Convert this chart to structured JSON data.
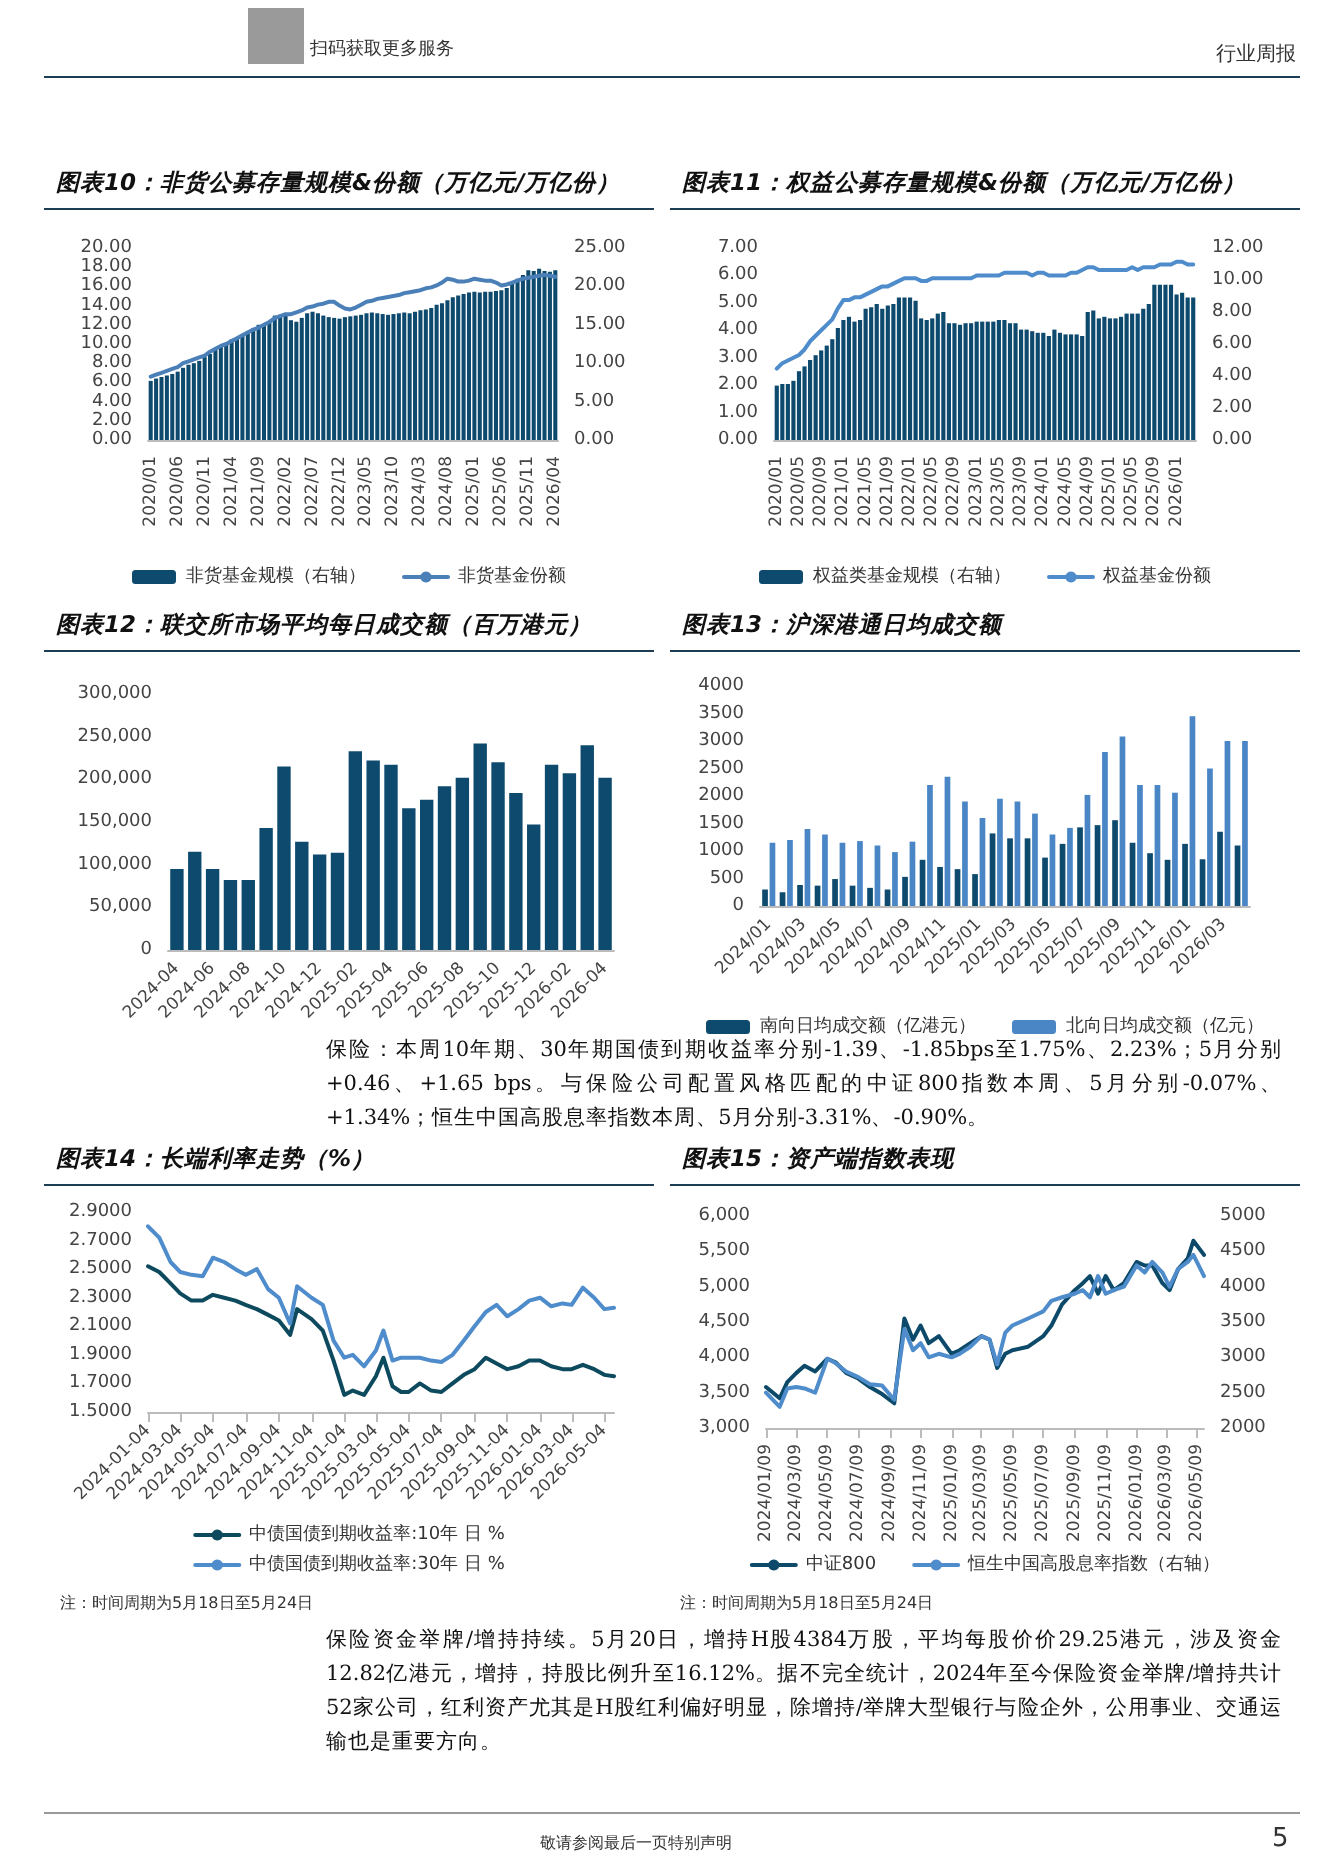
{
  "chart_data": [
    {
      "type": "bar",
      "title": "图表10：非货公募存量规模&份额（万亿元/万亿份）",
      "legend": "bottom",
      "marker": "none",
      "annotations": [
        "扫码获取更多服务",
        "行业周报",
        "敬请参阅最后一页特别声明",
        "5"
      ],
      "categories": [
        "2020/01",
        null,
        null,
        null,
        null,
        "2020/06",
        null,
        null,
        null,
        null,
        "2020/11",
        null,
        null,
        null,
        null,
        "2021/04",
        null,
        null,
        null,
        null,
        "2021/09",
        null,
        null,
        null,
        null,
        "2022/02",
        null,
        null,
        null,
        null,
        "2022/07",
        null,
        null,
        null,
        null,
        "2022/12",
        null,
        null,
        null,
        null,
        "2023/05",
        null,
        null,
        null,
        null,
        "2023/10",
        null,
        null,
        null,
        null,
        "2024/03",
        null,
        null,
        null,
        null,
        "2024/08",
        null,
        null,
        null,
        null,
        "2025/01",
        null,
        null,
        null,
        null,
        "2025/06",
        null,
        null,
        null,
        null,
        "2025/11",
        null,
        null,
        null,
        null,
        "2026/04"
      ],
      "ylim": [
        0,
        20
      ],
      "yticks": [
        {
          "value": 0,
          "label": "0.00"
        },
        {
          "value": 2,
          "label": "2.00"
        },
        {
          "value": 4,
          "label": "4.00"
        },
        {
          "value": 6,
          "label": "6.00"
        },
        {
          "value": 8,
          "label": "8.00"
        },
        {
          "value": 10,
          "label": "10.00"
        },
        {
          "value": 12,
          "label": "12.00"
        },
        {
          "value": 14,
          "label": "14.00"
        },
        {
          "value": 16,
          "label": "16.00"
        },
        {
          "value": 18,
          "label": "18.00"
        },
        {
          "value": 20,
          "label": "20.00"
        }
      ],
      "y2lim": [
        0,
        25
      ],
      "y2ticks": [
        {
          "value": 0,
          "label": "0.00"
        },
        {
          "value": 5,
          "label": "5.00"
        },
        {
          "value": 10,
          "label": "10.00"
        },
        {
          "value": 15,
          "label": "15.00"
        },
        {
          "value": 20,
          "label": "20.00"
        },
        {
          "value": 25,
          "label": "25.00"
        }
      ],
      "series": [
        {
          "name": "非货基金规模（右轴）",
          "type": "bar",
          "axis": "y2",
          "color": "#0e4a6e",
          "values": [
            7.7,
            8.0,
            8.2,
            8.4,
            8.6,
            8.9,
            9.4,
            9.8,
            10.0,
            10.3,
            10.8,
            11.2,
            11.8,
            12.2,
            12.5,
            13.1,
            13.3,
            13.8,
            14.2,
            14.5,
            15.0,
            15.0,
            15.4,
            16.2,
            16.3,
            16.2,
            15.6,
            15.4,
            15.9,
            16.5,
            16.7,
            16.5,
            16.2,
            16.0,
            15.9,
            15.8,
            16.0,
            16.1,
            16.2,
            16.3,
            16.5,
            16.6,
            16.5,
            16.4,
            16.3,
            16.4,
            16.5,
            16.6,
            16.5,
            16.7,
            16.9,
            17.0,
            17.2,
            17.6,
            17.8,
            18.2,
            18.6,
            18.8,
            19.0,
            19.2,
            19.3,
            19.2,
            19.3,
            19.3,
            19.4,
            19.5,
            19.8,
            20.3,
            21.0,
            21.5,
            22.1,
            22.0,
            22.3,
            22.0,
            21.9,
            22.1
          ]
        },
        {
          "name": "非货基金份额",
          "type": "line",
          "color": "#4a7fb8",
          "values": [
            6.6,
            6.8,
            7.0,
            7.2,
            7.4,
            7.6,
            8.0,
            8.2,
            8.4,
            8.6,
            8.8,
            9.2,
            9.5,
            9.8,
            10.0,
            10.3,
            10.6,
            10.9,
            11.2,
            11.5,
            11.7,
            12.0,
            12.3,
            12.7,
            12.9,
            13.1,
            13.1,
            13.3,
            13.5,
            13.8,
            13.9,
            14.1,
            14.2,
            14.4,
            14.4,
            14.0,
            13.7,
            13.6,
            13.8,
            14.1,
            14.4,
            14.5,
            14.7,
            14.8,
            14.9,
            15.0,
            15.1,
            15.3,
            15.4,
            15.5,
            15.6,
            15.8,
            15.9,
            16.1,
            16.4,
            16.8,
            16.7,
            16.5,
            16.5,
            16.6,
            16.8,
            16.7,
            16.6,
            16.6,
            16.4,
            16.1,
            16.2,
            16.4,
            16.6,
            16.8,
            16.9,
            17.0,
            17.1,
            17.2,
            17.1,
            17.0
          ]
        }
      ]
    },
    {
      "type": "bar",
      "title": "图表11：权益公募存量规模&份额（万亿元/万亿份）",
      "legend": "bottom",
      "marker": "none",
      "categories": [
        "2020/01",
        null,
        null,
        null,
        "2020/05",
        null,
        null,
        null,
        "2020/09",
        null,
        null,
        null,
        "2021/01",
        null,
        null,
        null,
        "2021/05",
        null,
        null,
        null,
        "2021/09",
        null,
        null,
        null,
        "2022/01",
        null,
        null,
        null,
        "2022/05",
        null,
        null,
        null,
        "2022/09",
        null,
        null,
        null,
        "2023/01",
        null,
        null,
        null,
        "2023/05",
        null,
        null,
        null,
        "2023/09",
        null,
        null,
        null,
        "2024/01",
        null,
        null,
        null,
        "2024/05",
        null,
        null,
        null,
        "2024/09",
        null,
        null,
        null,
        "2025/01",
        null,
        null,
        null,
        "2025/05",
        null,
        null,
        null,
        "2025/09",
        null,
        null,
        null,
        "2026/01",
        null,
        null,
        null
      ],
      "ylim": [
        0,
        7
      ],
      "yticks": [
        {
          "value": 0,
          "label": "0.00"
        },
        {
          "value": 1,
          "label": "1.00"
        },
        {
          "value": 2,
          "label": "2.00"
        },
        {
          "value": 3,
          "label": "3.00"
        },
        {
          "value": 4,
          "label": "4.00"
        },
        {
          "value": 5,
          "label": "5.00"
        },
        {
          "value": 6,
          "label": "6.00"
        },
        {
          "value": 7,
          "label": "7.00"
        }
      ],
      "y2lim": [
        0,
        12
      ],
      "y2ticks": [
        {
          "value": 0,
          "label": "0.00"
        },
        {
          "value": 2,
          "label": "2.00"
        },
        {
          "value": 4,
          "label": "4.00"
        },
        {
          "value": 6,
          "label": "6.00"
        },
        {
          "value": 8,
          "label": "8.00"
        },
        {
          "value": 10,
          "label": "10.00"
        },
        {
          "value": 12,
          "label": "12.00"
        }
      ],
      "series": [
        {
          "name": "权益类基金规模（右轴）",
          "type": "bar",
          "axis": "y2",
          "color": "#0e4a6e",
          "values": [
            3.4,
            3.5,
            3.5,
            3.7,
            4.3,
            4.6,
            5.0,
            5.3,
            5.6,
            5.9,
            6.3,
            7.0,
            7.5,
            7.7,
            7.4,
            7.5,
            8.2,
            8.3,
            8.5,
            8.2,
            8.4,
            8.5,
            8.9,
            8.9,
            8.9,
            8.7,
            7.6,
            7.5,
            7.6,
            7.9,
            8.0,
            7.3,
            7.3,
            7.2,
            7.3,
            7.3,
            7.4,
            7.4,
            7.4,
            7.4,
            7.5,
            7.5,
            7.3,
            7.3,
            6.9,
            6.9,
            6.8,
            6.7,
            6.7,
            6.5,
            6.9,
            6.7,
            6.6,
            6.6,
            6.6,
            6.5,
            8.0,
            8.1,
            7.6,
            7.7,
            7.6,
            7.6,
            7.7,
            7.9,
            7.9,
            7.9,
            8.2,
            8.5,
            9.7,
            9.7,
            9.7,
            9.7,
            9.1,
            9.2,
            8.9,
            8.9
          ]
        },
        {
          "name": "权益基金份额",
          "type": "line",
          "color": "#4f8ccb",
          "values": [
            2.6,
            2.8,
            2.9,
            3.0,
            3.1,
            3.3,
            3.6,
            3.8,
            4.0,
            4.2,
            4.4,
            4.8,
            5.1,
            5.1,
            5.2,
            5.2,
            5.3,
            5.4,
            5.5,
            5.6,
            5.6,
            5.7,
            5.8,
            5.9,
            5.9,
            5.9,
            5.8,
            5.8,
            5.9,
            5.9,
            5.9,
            5.9,
            5.9,
            5.9,
            5.9,
            5.9,
            6.0,
            6.0,
            6.0,
            6.0,
            6.0,
            6.1,
            6.1,
            6.1,
            6.1,
            6.1,
            6.0,
            6.1,
            6.1,
            6.0,
            6.0,
            6.0,
            6.0,
            6.1,
            6.1,
            6.2,
            6.3,
            6.3,
            6.2,
            6.2,
            6.2,
            6.2,
            6.2,
            6.2,
            6.3,
            6.2,
            6.3,
            6.3,
            6.3,
            6.4,
            6.4,
            6.4,
            6.5,
            6.5,
            6.4,
            6.4
          ]
        }
      ]
    },
    {
      "type": "bar",
      "title": "图表12：联交所市场平均每日成交额（百万港元）",
      "annotations": [
        "保险：本周10年期、30年期国债到期收益率分别-1.39、-1.85bps至1.75%、2.23%；5月分别+0.46、+1.65 bps。与保险公司配置风格匹配的中证800指数本周、5月分别-0.07%、+1.34%；恒生中国高股息率指数本周、5月分别-3.31%、-0.90%。"
      ],
      "categories": [
        "2024-04",
        null,
        "2024-06",
        null,
        "2024-08",
        null,
        "2024-10",
        null,
        "2024-12",
        null,
        "2025-02",
        null,
        "2025-04",
        null,
        "2025-06",
        null,
        "2025-08",
        null,
        "2025-10",
        null,
        "2025-12",
        null,
        "2026-02",
        null,
        "2026-04"
      ],
      "ylim": [
        0,
        300000
      ],
      "yticks": [
        0,
        {
          "value": 50000,
          "label": "50,000"
        },
        {
          "value": 100000,
          "label": "100,000"
        },
        {
          "value": 150000,
          "label": "150,000"
        },
        {
          "value": 200000,
          "label": "200,000"
        },
        {
          "value": 250000,
          "label": "250,000"
        },
        {
          "value": 300000,
          "label": "300,000"
        }
      ],
      "series": [
        {
          "color": "#0e4a6e",
          "values": [
            95000,
            115000,
            95000,
            82000,
            82000,
            143000,
            215000,
            127000,
            112000,
            114000,
            233000,
            222000,
            217000,
            166000,
            176000,
            192000,
            202000,
            242000,
            220000,
            184000,
            147000,
            217000,
            207000,
            240000,
            202000
          ]
        }
      ]
    },
    {
      "type": "bar",
      "title": "图表13：沪深港通日均成交额",
      "legend": "bottom",
      "categories": [
        "2024/01",
        null,
        "2024/03",
        null,
        "2024/05",
        null,
        "2024/07",
        null,
        "2024/09",
        null,
        "2024/11",
        null,
        "2025/01",
        null,
        "2025/03",
        null,
        "2025/05",
        null,
        "2025/07",
        null,
        "2025/09",
        null,
        "2025/11",
        null,
        "2026/01",
        null,
        "2026/03",
        null
      ],
      "ylim": [
        0,
        4000
      ],
      "yticks": [
        0,
        500,
        1000,
        1500,
        2000,
        2500,
        3000,
        3500,
        4000
      ],
      "series": [
        {
          "name": "南向日均成交额（亿港元）",
          "color": "#0e4a6e",
          "values": [
            300,
            250,
            380,
            370,
            490,
            370,
            330,
            300,
            530,
            840,
            710,
            670,
            580,
            1320,
            1230,
            1230,
            880,
            1130,
            1430,
            1470,
            1560,
            1150,
            960,
            840,
            1130,
            850,
            1350,
            1100
          ]
        },
        {
          "name": "北向日均成交额（亿元）",
          "color": "#4a86c5",
          "values": [
            1150,
            1200,
            1400,
            1300,
            1150,
            1180,
            1100,
            980,
            1170,
            2200,
            2350,
            1900,
            1600,
            1950,
            1900,
            1680,
            1300,
            1420,
            2020,
            2800,
            3080,
            2200,
            2200,
            2060,
            3450,
            2500,
            3000,
            3000
          ]
        }
      ]
    },
    {
      "type": "line",
      "title": "图表14：长端利率走势（%）",
      "legend": "bottom",
      "marker": "none",
      "annotations": [
        "注：时间周期为5月18日至5月24日",
        "保险资金举牌/增持持续。5月20日，增持H股4384万股，平均每股价价29.25港元，涉及资金12.82亿港元，增持，持股比例升至16.12%。据不完全统计，2024年至今保险资金举牌/增持共计52家公司，红利资产尤其是H股红利偏好明显，除增持/举牌大型银行与险企外，公用事业、交通运输也是重要方向。"
      ],
      "x": [
        "2024-01-04",
        "2024-01-25",
        "2024-02-15",
        "2024-03-04",
        "2024-03-25",
        "2024-04-15",
        "2024-05-04",
        "2024-05-25",
        "2024-06-15",
        "2024-07-04",
        "2024-07-25",
        "2024-08-15",
        "2024-09-04",
        "2024-09-25",
        "2024-10-08",
        "2024-11-04",
        "2024-11-25",
        "2024-12-15",
        "2025-01-04",
        "2025-01-20",
        "2025-02-10",
        "2025-03-04",
        "2025-03-18",
        "2025-04-04",
        "2025-04-20",
        "2025-05-04",
        "2025-05-25",
        "2025-06-15",
        "2025-07-04",
        "2025-07-25",
        "2025-08-15",
        "2025-09-04",
        "2025-09-25",
        "2025-10-15",
        "2025-11-04",
        "2025-11-25",
        "2025-12-15",
        "2026-01-04",
        "2026-01-25",
        "2026-02-15",
        "2026-03-04",
        "2026-03-25",
        "2026-04-15",
        "2026-05-04",
        "2026-05-22"
      ],
      "xlim": [
        "2024-01-04",
        "2026-05-22"
      ],
      "xticks": [
        "2024-01-04",
        "2024-03-04",
        "2024-05-04",
        "2024-07-04",
        "2024-09-04",
        "2024-11-04",
        "2025-01-04",
        "2025-03-04",
        "2025-05-04",
        "2025-07-04",
        "2025-09-04",
        "2025-11-04",
        "2026-01-04",
        "2026-03-04",
        "2026-05-04"
      ],
      "ylim": [
        1.5,
        2.9
      ],
      "yticks": [
        {
          "value": 1.5,
          "label": "1.5000"
        },
        {
          "value": 1.7,
          "label": "1.7000"
        },
        {
          "value": 1.9,
          "label": "1.9000"
        },
        {
          "value": 2.1,
          "label": "2.1000"
        },
        {
          "value": 2.3,
          "label": "2.3000"
        },
        {
          "value": 2.5,
          "label": "2.5000"
        },
        {
          "value": 2.7,
          "label": "2.7000"
        },
        {
          "value": 2.9,
          "label": "2.9000"
        }
      ],
      "series": [
        {
          "name": "中债国债到期收益率:10年 日 %",
          "color": "#0d4a5e",
          "values": [
            2.52,
            2.48,
            2.4,
            2.33,
            2.28,
            2.28,
            2.32,
            2.3,
            2.28,
            2.25,
            2.22,
            2.18,
            2.14,
            2.04,
            2.22,
            2.15,
            2.07,
            1.86,
            1.62,
            1.65,
            1.62,
            1.75,
            1.88,
            1.68,
            1.64,
            1.64,
            1.7,
            1.65,
            1.64,
            1.7,
            1.76,
            1.8,
            1.88,
            1.84,
            1.8,
            1.82,
            1.86,
            1.86,
            1.82,
            1.8,
            1.8,
            1.83,
            1.8,
            1.76,
            1.75
          ]
        },
        {
          "name": "中债国债到期收益率:30年 日 %",
          "color": "#4f8ccb",
          "values": [
            2.8,
            2.72,
            2.55,
            2.48,
            2.46,
            2.45,
            2.58,
            2.55,
            2.5,
            2.46,
            2.5,
            2.36,
            2.3,
            2.12,
            2.38,
            2.3,
            2.25,
            2.0,
            1.88,
            1.9,
            1.82,
            1.93,
            2.07,
            1.86,
            1.88,
            1.88,
            1.88,
            1.86,
            1.85,
            1.9,
            2.0,
            2.1,
            2.2,
            2.25,
            2.17,
            2.22,
            2.28,
            2.3,
            2.24,
            2.26,
            2.25,
            2.37,
            2.3,
            2.22,
            2.23
          ]
        }
      ]
    },
    {
      "type": "line",
      "title": "图表15：资产端指数表现",
      "legend": "bottom",
      "marker": "none",
      "annotations": [
        "注：时间周期为5月18日至5月24日"
      ],
      "x": [
        "2024-01-09",
        "2024-02-05",
        "2024-02-20",
        "2024-03-09",
        "2024-03-25",
        "2024-04-15",
        "2024-05-09",
        "2024-05-25",
        "2024-06-15",
        "2024-07-09",
        "2024-08-01",
        "2024-08-25",
        "2024-09-18",
        "2024-10-08",
        "2024-10-25",
        "2024-11-09",
        "2024-11-25",
        "2024-12-15",
        "2025-01-09",
        "2025-01-25",
        "2025-02-15",
        "2025-03-09",
        "2025-03-25",
        "2025-04-09",
        "2025-04-25",
        "2025-05-09",
        "2025-06-09",
        "2025-07-09",
        "2025-07-25",
        "2025-08-15",
        "2025-09-09",
        "2025-09-25",
        "2025-10-09",
        "2025-10-25",
        "2025-11-09",
        "2025-11-25",
        "2025-12-15",
        "2026-01-09",
        "2026-01-25",
        "2026-02-09",
        "2026-03-01",
        "2026-03-15",
        "2026-04-01",
        "2026-04-20",
        "2026-05-01",
        "2026-05-22"
      ],
      "xlim": [
        "2024-01-09",
        "2026-05-22"
      ],
      "xticks": [
        {
          "value": "2024-01-09",
          "label": "2024/01/09"
        },
        {
          "value": "2024-03-09",
          "label": "2024/03/09"
        },
        {
          "value": "2024-05-09",
          "label": "2024/05/09"
        },
        {
          "value": "2024-07-09",
          "label": "2024/07/09"
        },
        {
          "value": "2024-09-09",
          "label": "2024/09/09"
        },
        {
          "value": "2024-11-09",
          "label": "2024/11/09"
        },
        {
          "value": "2025-01-09",
          "label": "2025/01/09"
        },
        {
          "value": "2025-03-09",
          "label": "2025/03/09"
        },
        {
          "value": "2025-05-09",
          "label": "2025/05/09"
        },
        {
          "value": "2025-07-09",
          "label": "2025/07/09"
        },
        {
          "value": "2025-09-09",
          "label": "2025/09/09"
        },
        {
          "value": "2025-11-09",
          "label": "2025/11/09"
        },
        {
          "value": "2026-01-09",
          "label": "2026/01/09"
        },
        {
          "value": "2026-03-09",
          "label": "2026/03/09"
        },
        {
          "value": "2026-05-09",
          "label": "2026/05/09"
        }
      ],
      "ylim": [
        3000,
        6000
      ],
      "yticks": [
        {
          "value": 3000,
          "label": "3,000"
        },
        {
          "value": 3500,
          "label": "3,500"
        },
        {
          "value": 4000,
          "label": "4,000"
        },
        {
          "value": 4500,
          "label": "4,500"
        },
        {
          "value": 5000,
          "label": "5,000"
        },
        {
          "value": 5500,
          "label": "5,500"
        },
        {
          "value": 6000,
          "label": "6,000"
        }
      ],
      "y2lim": [
        2000,
        5000
      ],
      "y2ticks": [
        2000,
        2500,
        3000,
        3500,
        4000,
        4500,
        5000
      ],
      "series": [
        {
          "name": "中证800",
          "color": "#0d4a6a",
          "values": [
            3580,
            3420,
            3650,
            3780,
            3880,
            3800,
            3980,
            3930,
            3780,
            3700,
            3580,
            3480,
            3350,
            4550,
            4250,
            4450,
            4200,
            4300,
            4050,
            4100,
            4200,
            4300,
            4250,
            3850,
            4050,
            4100,
            4150,
            4300,
            4450,
            4750,
            4950,
            5050,
            5150,
            4900,
            5150,
            4950,
            5050,
            5350,
            5300,
            5300,
            5050,
            4950,
            5250,
            5400,
            5650,
            5450
          ]
        },
        {
          "name": "恒生中国高股息率指数（右轴）",
          "axis": "y2",
          "color": "#4f8ccb",
          "values": [
            2500,
            2300,
            2560,
            2580,
            2560,
            2500,
            2980,
            2920,
            2800,
            2720,
            2620,
            2600,
            2400,
            3400,
            3100,
            3200,
            3000,
            3050,
            3000,
            3050,
            3150,
            3300,
            3250,
            2900,
            3350,
            3450,
            3550,
            3650,
            3800,
            3850,
            3900,
            3950,
            3850,
            4150,
            3900,
            3950,
            4000,
            4300,
            4200,
            4350,
            4200,
            4000,
            4250,
            4350,
            4450,
            4150
          ]
        }
      ]
    }
  ]
}
